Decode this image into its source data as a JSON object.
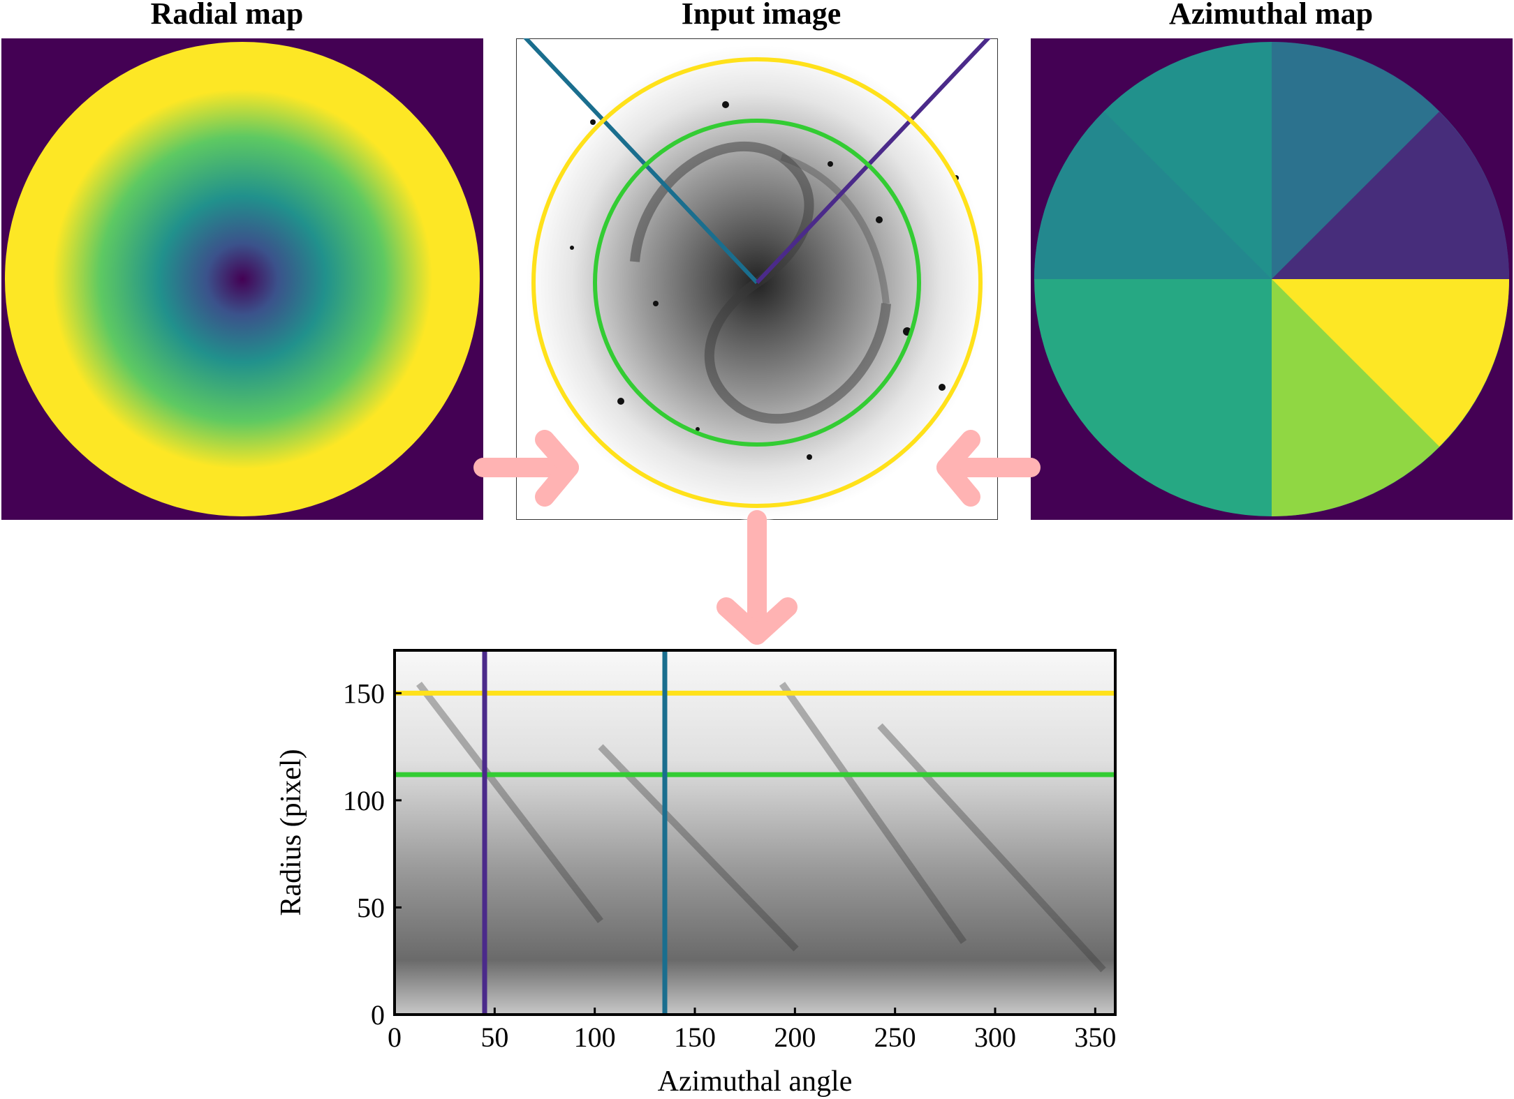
{
  "titles": {
    "radial": "Radial map",
    "input": "Input image",
    "azimuthal": "Azimuthal map"
  },
  "colors": {
    "arrow": "#ffb3b3",
    "yellow_line": "#ffe11a",
    "green_line": "#33cc33",
    "teal_line": "#1a6e8e",
    "purple_line": "#4b2a8a",
    "viridis_dark": "#440154",
    "viridis_mid": "#21918c",
    "viridis_bright": "#fde725"
  },
  "chart_data": {
    "type": "heatmap",
    "xlabel": "Azimuthal angle",
    "ylabel": "Radius (pixel)",
    "xlim": [
      0,
      360
    ],
    "ylim": [
      0,
      170
    ],
    "xticks": [
      0,
      50,
      100,
      150,
      200,
      250,
      300,
      350
    ],
    "yticks": [
      0,
      50,
      100,
      150
    ],
    "hlines": [
      {
        "y": 150,
        "color": "yellow"
      },
      {
        "y": 112,
        "color": "green"
      }
    ],
    "vlines": [
      {
        "x": 45,
        "color": "purple"
      },
      {
        "x": 135,
        "color": "teal"
      }
    ]
  }
}
